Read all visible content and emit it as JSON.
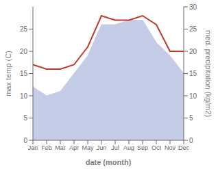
{
  "chart_data": {
    "type": "combo",
    "categories": [
      "Jan",
      "Feb",
      "Mar",
      "Apr",
      "May",
      "Jun",
      "Jul",
      "Aug",
      "Sep",
      "Oct",
      "Nov",
      "Dec"
    ],
    "series": [
      {
        "type": "area",
        "color": "#c5cce8",
        "values": [
          12,
          10,
          11,
          15,
          19,
          26,
          26,
          27,
          27,
          22,
          19,
          15
        ]
      },
      {
        "type": "line",
        "color": "#c0392b",
        "axis": "y2",
        "values": [
          17,
          16,
          16,
          17,
          21,
          28,
          27,
          27,
          28,
          26,
          20,
          20
        ]
      }
    ],
    "x_label": "date (month)",
    "y_label": "max temp (C)",
    "y2_label": "med. precipitation (kg/m2)",
    "ylim": [
      0,
      30
    ],
    "yticks": [
      0,
      5,
      10,
      15,
      20,
      25
    ],
    "y2lim": [
      0,
      30
    ],
    "y2ticks": [
      0,
      5,
      10,
      15,
      20,
      25,
      30
    ],
    "grid": false
  }
}
